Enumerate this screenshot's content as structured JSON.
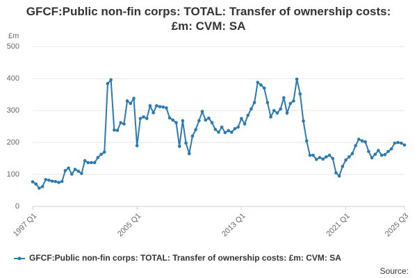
{
  "chart_data": {
    "type": "line",
    "title": "GFCF:Public non-fin corps: TOTAL: Transfer of ownership costs: £m: CVM: SA",
    "y_label": "£m",
    "source": "Source:",
    "categories": [
      "1997 Q1",
      null,
      null,
      null,
      null,
      null,
      null,
      null,
      null,
      null,
      null,
      null,
      null,
      null,
      null,
      null,
      null,
      null,
      null,
      null,
      null,
      null,
      null,
      null,
      null,
      null,
      null,
      null,
      null,
      null,
      null,
      null,
      "2005 Q1",
      null,
      null,
      null,
      null,
      null,
      null,
      null,
      null,
      null,
      null,
      null,
      null,
      null,
      null,
      null,
      null,
      null,
      null,
      null,
      null,
      null,
      null,
      null,
      null,
      null,
      null,
      null,
      null,
      null,
      null,
      null,
      "2013 Q1",
      null,
      null,
      null,
      null,
      null,
      null,
      null,
      null,
      null,
      null,
      null,
      null,
      null,
      null,
      null,
      null,
      null,
      null,
      null,
      null,
      null,
      null,
      null,
      null,
      null,
      null,
      null,
      null,
      null,
      null,
      null,
      "2021 Q1",
      null,
      null,
      null,
      null,
      null,
      null,
      null,
      null,
      null,
      null,
      null,
      null,
      null,
      null,
      null,
      null,
      null,
      "2025 Q3"
    ],
    "series": [
      {
        "name": "GFCF:Public non-fin corps: TOTAL: Transfer of ownership costs: £m: CVM: SA",
        "color": "#2a7ab0",
        "values": [
          77,
          70,
          57,
          62,
          84,
          82,
          79,
          78,
          75,
          78,
          112,
          120,
          101,
          116,
          110,
          103,
          143,
          137,
          137,
          137,
          153,
          163,
          170,
          384,
          396,
          239,
          238,
          262,
          258,
          330,
          322,
          338,
          190,
          275,
          280,
          275,
          315,
          293,
          315,
          312,
          311,
          308,
          277,
          270,
          262,
          188,
          268,
          198,
          165,
          220,
          240,
          268,
          297,
          270,
          276,
          262,
          241,
          232,
          248,
          231,
          237,
          232,
          243,
          248,
          275,
          258,
          285,
          305,
          325,
          388,
          380,
          370,
          325,
          280,
          300,
          292,
          305,
          340,
          292,
          322,
          330,
          398,
          352,
          267,
          205,
          160,
          160,
          147,
          153,
          148,
          155,
          160,
          150,
          105,
          95,
          125,
          145,
          155,
          165,
          190,
          210,
          205,
          202,
          172,
          152,
          163,
          175,
          160,
          162,
          172,
          180,
          198,
          200,
          198,
          192
        ]
      }
    ],
    "ylim": [
      0,
      500
    ],
    "yticks": [
      0,
      100,
      200,
      300,
      400,
      500
    ],
    "grid": true,
    "legend": "bottom"
  }
}
